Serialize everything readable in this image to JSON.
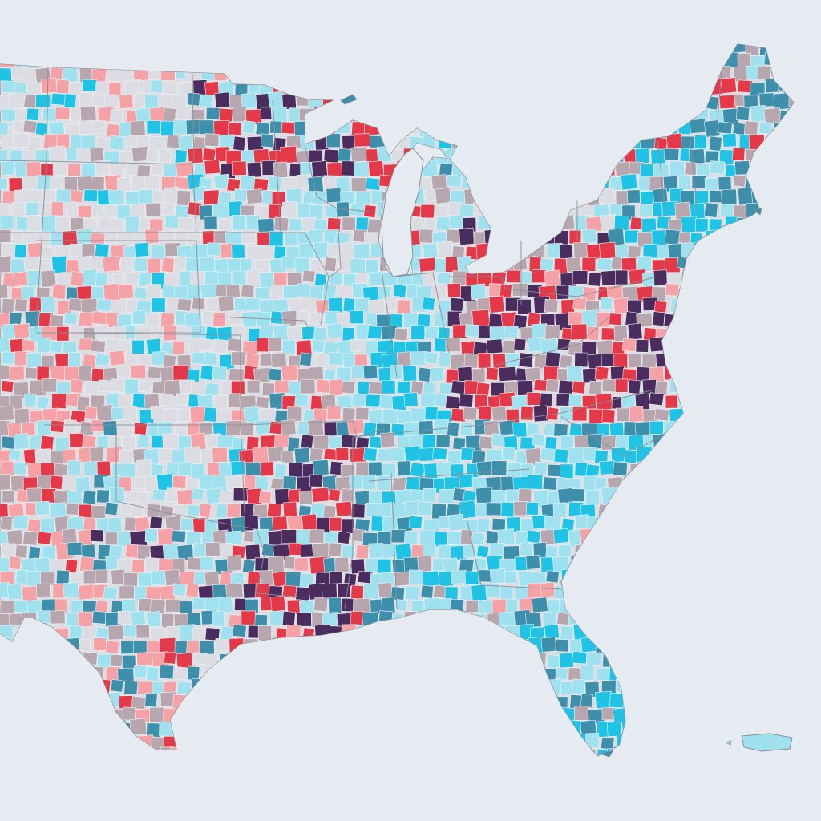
{
  "map": {
    "background_color": "#e6ebf1",
    "border_color": "#8a8f96",
    "county_line_color": "#eef1f4",
    "palette": {
      "light-gray": "#dcdde3",
      "pale-cyan": "#9fe1ef",
      "cyan": "#1fc3e6",
      "steel-blue": "#3d8fab",
      "mauve-gray": "#b8a6ae",
      "pink": "#f5a1a5",
      "red": "#e53848",
      "dark-purple": "#4a2c5e"
    },
    "regions": [
      {
        "name": "northern-plains",
        "weights": {
          "light-gray": 5,
          "pale-cyan": 3,
          "pink": 2,
          "mauve-gray": 1,
          "cyan": 1,
          "red": 0.3
        }
      },
      {
        "name": "central-plains",
        "weights": {
          "light-gray": 4,
          "pale-cyan": 4,
          "pink": 2,
          "mauve-gray": 1,
          "cyan": 1,
          "red": 0.3
        }
      },
      {
        "name": "upper-midwest",
        "weights": {
          "pale-cyan": 5,
          "mauve-gray": 2,
          "light-gray": 2,
          "red": 1.2,
          "steel-blue": 1,
          "cyan": 1
        }
      },
      {
        "name": "north-woods",
        "weights": {
          "red": 3,
          "steel-blue": 2,
          "dark-purple": 1.5,
          "mauve-gray": 2,
          "pale-cyan": 2
        }
      },
      {
        "name": "corn-belt",
        "weights": {
          "pale-cyan": 6,
          "light-gray": 2,
          "cyan": 1.5,
          "mauve-gray": 1,
          "pink": 0.5
        }
      },
      {
        "name": "appalachia",
        "weights": {
          "red": 4,
          "dark-purple": 3,
          "mauve-gray": 2,
          "pink": 1,
          "pale-cyan": 1
        }
      },
      {
        "name": "northeast",
        "weights": {
          "steel-blue": 3,
          "cyan": 3,
          "pale-cyan": 3,
          "red": 1,
          "mauve-gray": 1
        }
      },
      {
        "name": "mid-atlantic-southeast",
        "weights": {
          "pale-cyan": 4,
          "cyan": 3,
          "steel-blue": 2,
          "mauve-gray": 1,
          "pink": 0.5
        }
      },
      {
        "name": "delta",
        "weights": {
          "dark-purple": 4,
          "steel-blue": 2,
          "mauve-gray": 2,
          "red": 2,
          "pink": 1,
          "pale-cyan": 1
        }
      },
      {
        "name": "texas-gulf",
        "weights": {
          "pale-cyan": 3,
          "mauve-gray": 2,
          "steel-blue": 2,
          "pink": 2,
          "red": 1,
          "light-gray": 1,
          "dark-purple": 0.5
        }
      },
      {
        "name": "florida",
        "weights": {
          "steel-blue": 3,
          "cyan": 3,
          "pale-cyan": 2,
          "mauve-gray": 0.5
        }
      },
      {
        "name": "ozarks-plains",
        "weights": {
          "mauve-gray": 3,
          "pink": 2,
          "pale-cyan": 3,
          "red": 1,
          "light-gray": 1,
          "steel-blue": 1
        }
      },
      {
        "name": "maine",
        "weights": {
          "steel-blue": 3,
          "pale-cyan": 2,
          "mauve-gray": 2,
          "red": 1
        }
      },
      {
        "name": "puerto-rico",
        "weights": {
          "pale-cyan": 3,
          "cyan": 2,
          "steel-blue": 2
        }
      }
    ]
  }
}
